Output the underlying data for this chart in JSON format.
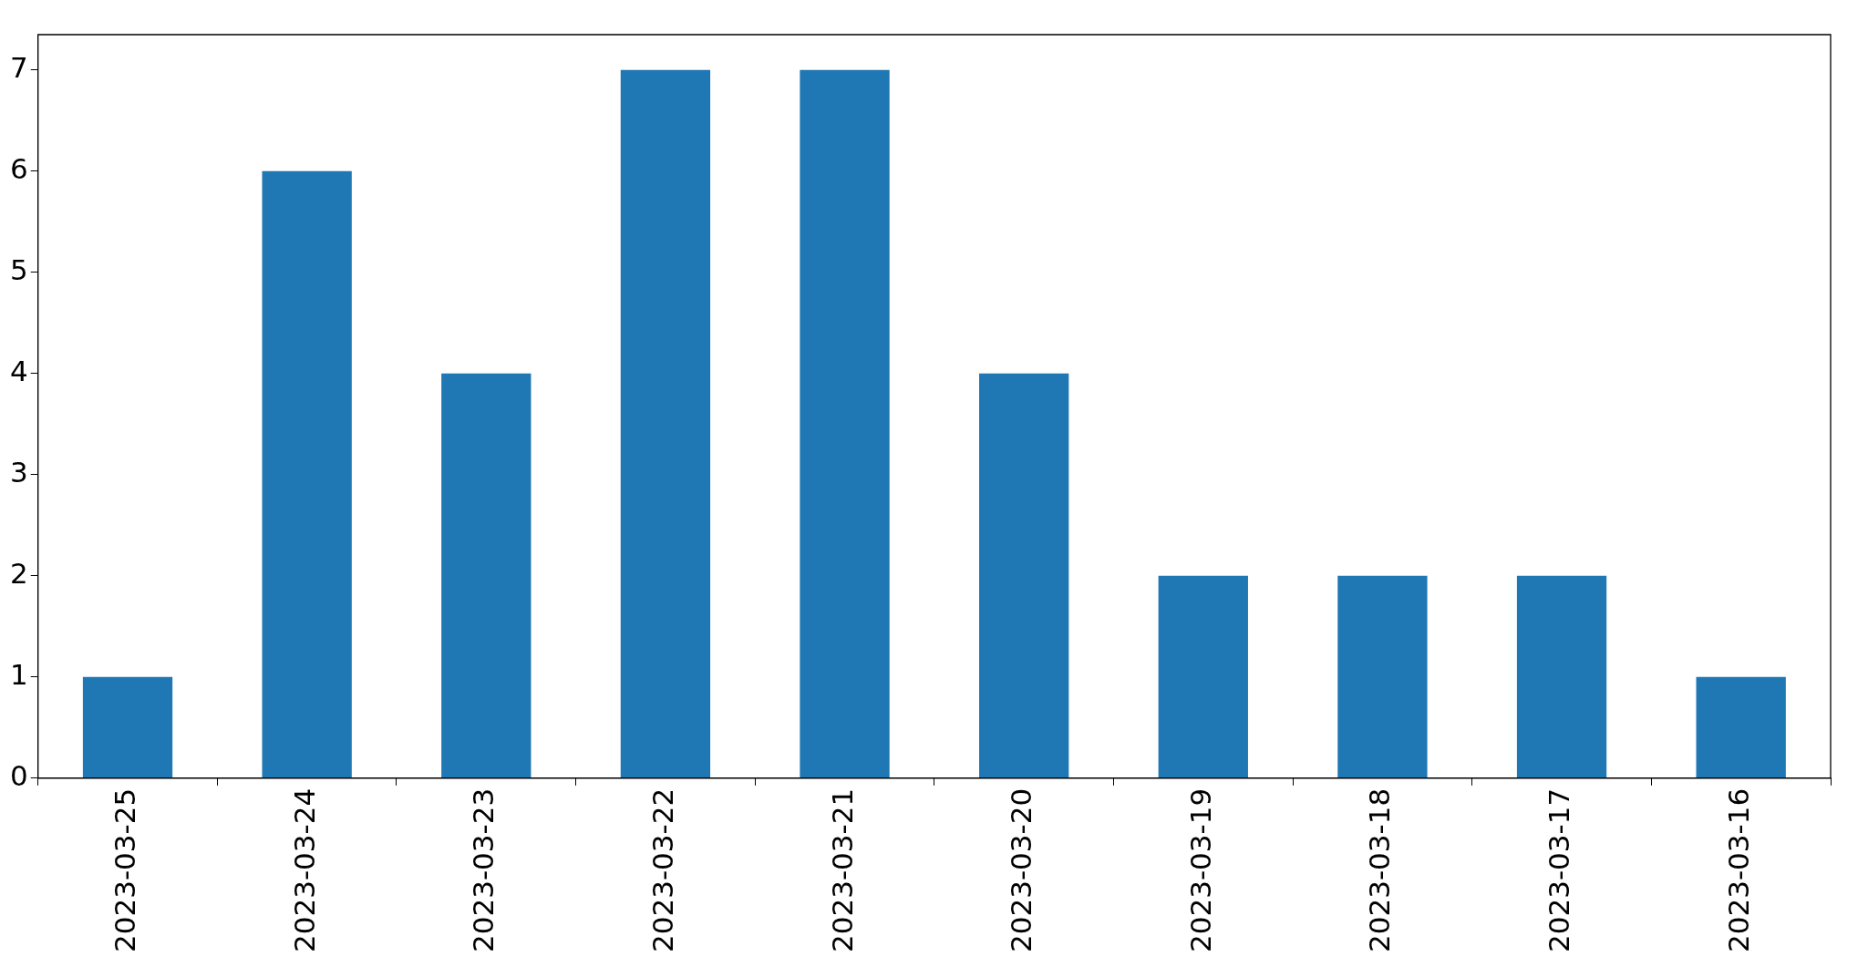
{
  "chart_data": {
    "type": "bar",
    "categories": [
      "2023-03-25",
      "2023-03-24",
      "2023-03-23",
      "2023-03-22",
      "2023-03-21",
      "2023-03-20",
      "2023-03-19",
      "2023-03-18",
      "2023-03-17",
      "2023-03-16"
    ],
    "values": [
      1,
      6,
      4,
      7,
      7,
      4,
      2,
      2,
      2,
      1
    ],
    "color": "#1f77b4",
    "ylim": [
      0,
      7.35
    ],
    "yticks": [
      0,
      1,
      2,
      3,
      4,
      5,
      6,
      7
    ],
    "grid": false,
    "legend": false
  }
}
